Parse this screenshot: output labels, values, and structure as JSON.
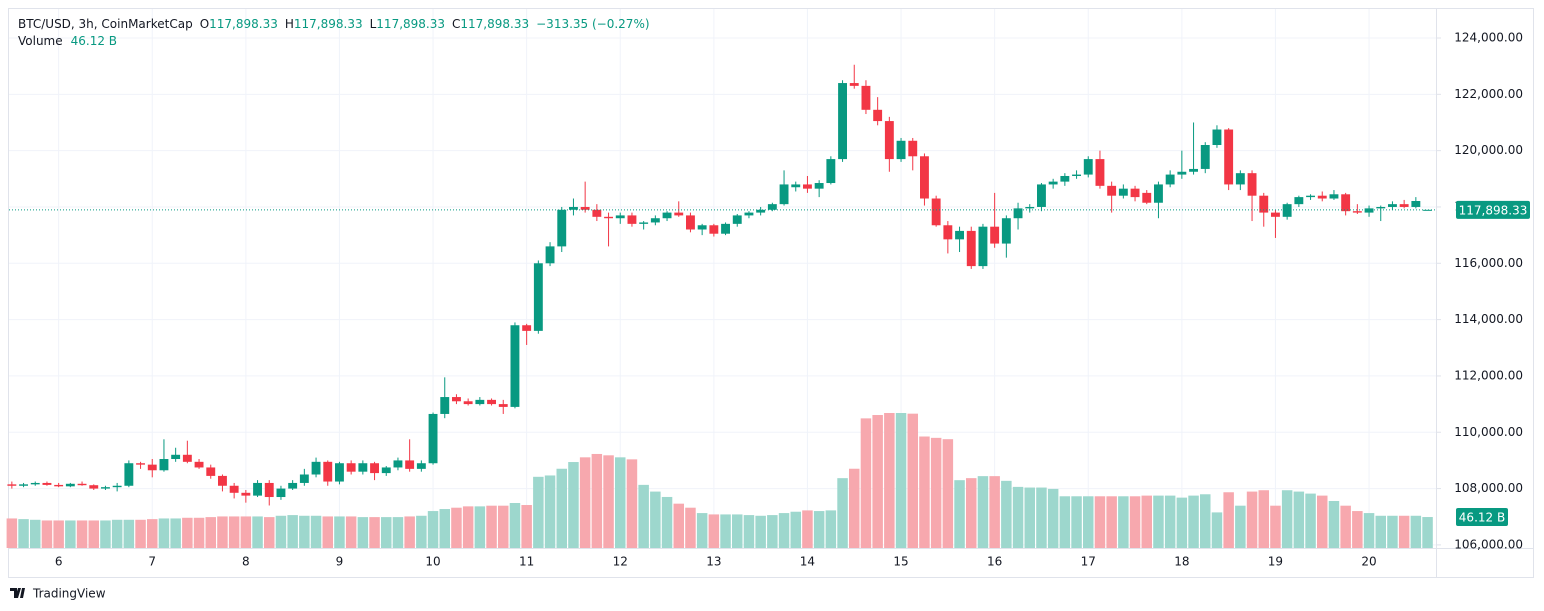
{
  "chart_data": {
    "type": "candlestick",
    "legend": {
      "symbol": "BTC/USD, 3h, CoinMarketCap",
      "items": [
        {
          "label": "O",
          "value": "117,898.33"
        },
        {
          "label": "H",
          "value": "117,898.33"
        },
        {
          "label": "L",
          "value": "117,898.33"
        },
        {
          "label": "C",
          "value": "117,898.33"
        }
      ],
      "change": "−313.35 (−0.27%)",
      "volume_name": "Volume",
      "volume_value": "46.12 B"
    },
    "brand": "TradingView",
    "up_color": "#089981",
    "down_color": "#f23645",
    "volume_up_color": "#9dd7cd",
    "volume_down_color": "#f7a8ae",
    "grid": true,
    "categories": [
      null,
      null,
      null,
      null,
      "6",
      null,
      null,
      null,
      null,
      null,
      null,
      null,
      "7",
      null,
      null,
      null,
      null,
      null,
      null,
      null,
      "8",
      null,
      null,
      null,
      null,
      null,
      null,
      null,
      "9",
      null,
      null,
      null,
      null,
      null,
      null,
      null,
      "10",
      null,
      null,
      null,
      null,
      null,
      null,
      null,
      "11",
      null,
      null,
      null,
      null,
      null,
      null,
      null,
      "12",
      null,
      null,
      null,
      null,
      null,
      null,
      null,
      "13",
      null,
      null,
      null,
      null,
      null,
      null,
      null,
      "14",
      null,
      null,
      null,
      null,
      null,
      null,
      null,
      "15",
      null,
      null,
      null,
      null,
      null,
      null,
      null,
      "16",
      null,
      null,
      null,
      null,
      null,
      null,
      null,
      "17",
      null,
      null,
      null,
      null,
      null,
      null,
      null,
      "18",
      null,
      null,
      null,
      null,
      null,
      null,
      null,
      "19",
      null,
      null,
      null,
      null,
      null,
      null,
      null,
      "20",
      null,
      null,
      null,
      null,
      null
    ],
    "open": [
      108150,
      108100,
      108150,
      108200,
      108130,
      108080,
      108170,
      108120,
      108000,
      108050,
      108100,
      108900,
      108850,
      108650,
      109050,
      109200,
      108950,
      108750,
      108450,
      108100,
      107850,
      107750,
      108200,
      107700,
      108000,
      108200,
      108500,
      108950,
      108250,
      108900,
      108600,
      108900,
      108550,
      108750,
      109000,
      108700,
      108900,
      110650,
      111250,
      111100,
      111000,
      111150,
      111000,
      110900,
      113800,
      113600,
      116000,
      116600,
      117900,
      118000,
      117900,
      117650,
      117600,
      117700,
      117400,
      117450,
      117600,
      117800,
      117700,
      117200,
      117350,
      117050,
      117400,
      117700,
      117800,
      117900,
      118100,
      118700,
      118800,
      118650,
      118850,
      119700,
      122400,
      122300,
      121450,
      121050,
      119700,
      120350,
      119800,
      118300,
      117350,
      116850,
      117150,
      115900,
      117300,
      116700,
      117600,
      117950,
      118000,
      118800,
      118900,
      119100,
      119150,
      119700,
      118750,
      118400,
      118650,
      118500,
      118150,
      118800,
      119150,
      119250,
      119350,
      120200,
      120750,
      118800,
      119200,
      118400,
      117800,
      117650,
      118100,
      118350,
      118400,
      118300,
      118450,
      117850,
      117800,
      117950,
      118000,
      118100,
      118000,
      117898.33
    ],
    "high": [
      108250,
      108200,
      108250,
      108250,
      108200,
      108200,
      108250,
      108150,
      108100,
      108200,
      109000,
      108950,
      109050,
      109750,
      109450,
      109700,
      109050,
      108850,
      108500,
      108200,
      107950,
      108300,
      108300,
      108100,
      108300,
      108700,
      109100,
      109000,
      108950,
      109000,
      109000,
      108950,
      108800,
      109100,
      109750,
      109000,
      110700,
      111950,
      111350,
      111200,
      111250,
      111200,
      111150,
      113900,
      113850,
      116100,
      116750,
      118000,
      118300,
      118900,
      118100,
      117800,
      117800,
      117800,
      117500,
      117700,
      117850,
      118200,
      117800,
      117400,
      117400,
      117450,
      117750,
      117850,
      118000,
      118150,
      119300,
      118900,
      119100,
      118950,
      119800,
      122500,
      123050,
      122500,
      121900,
      121200,
      120450,
      120450,
      119900,
      118400,
      117500,
      117300,
      117300,
      117400,
      118500,
      117700,
      118150,
      118100,
      118850,
      119000,
      119200,
      119300,
      119800,
      120000,
      118900,
      118800,
      118750,
      118600,
      118900,
      119300,
      120000,
      121000,
      120300,
      120900,
      120800,
      119300,
      119300,
      118500,
      117900,
      118150,
      118400,
      118450,
      118550,
      118600,
      118500,
      118100,
      118050,
      118050,
      118200,
      118250,
      118350,
      117898.33
    ],
    "low": [
      108000,
      108050,
      108100,
      108100,
      108050,
      108050,
      108100,
      107950,
      107950,
      107900,
      108050,
      108700,
      108400,
      108600,
      108950,
      108900,
      108700,
      108350,
      107900,
      107650,
      107500,
      107700,
      107400,
      107600,
      107950,
      108100,
      108400,
      108100,
      108150,
      108500,
      108500,
      108300,
      108450,
      108650,
      108600,
      108600,
      108850,
      110500,
      111000,
      110950,
      110950,
      110950,
      110650,
      110850,
      113100,
      113500,
      115900,
      116400,
      117700,
      117800,
      117500,
      116600,
      117400,
      117300,
      117200,
      117350,
      117500,
      117650,
      117100,
      117000,
      116950,
      117000,
      117300,
      117600,
      117700,
      117850,
      118050,
      118550,
      118500,
      118350,
      118800,
      119600,
      122200,
      121300,
      120900,
      119250,
      119600,
      119300,
      118050,
      117300,
      116350,
      116400,
      115800,
      115800,
      116550,
      116200,
      117200,
      117800,
      117850,
      118650,
      118750,
      119000,
      119050,
      118650,
      117800,
      118300,
      118200,
      118100,
      117600,
      118700,
      119000,
      119150,
      119200,
      120100,
      118600,
      118600,
      117500,
      117300,
      116900,
      117550,
      118000,
      118250,
      118200,
      118250,
      117700,
      117750,
      117650,
      117500,
      117900,
      117950,
      117950,
      117898.33
    ],
    "close": [
      108100,
      108150,
      108200,
      108130,
      108080,
      108170,
      108120,
      108000,
      108050,
      108100,
      108900,
      108850,
      108650,
      109050,
      109200,
      108950,
      108750,
      108450,
      108100,
      107850,
      107750,
      108200,
      107700,
      108000,
      108200,
      108500,
      108950,
      108250,
      108900,
      108600,
      108900,
      108550,
      108750,
      109000,
      108700,
      108900,
      110650,
      111250,
      111100,
      111000,
      111150,
      111000,
      110900,
      113800,
      113600,
      116000,
      116600,
      117900,
      118000,
      117900,
      117650,
      117600,
      117700,
      117400,
      117450,
      117600,
      117800,
      117700,
      117200,
      117350,
      117050,
      117400,
      117700,
      117800,
      117900,
      118100,
      118800,
      118800,
      118650,
      118850,
      119700,
      122400,
      122300,
      121450,
      121050,
      119700,
      120350,
      119800,
      118300,
      117350,
      116850,
      117150,
      115900,
      117300,
      116700,
      117600,
      117950,
      118000,
      118800,
      118900,
      119100,
      119150,
      119700,
      118750,
      118400,
      118650,
      118350,
      118150,
      118800,
      119150,
      119250,
      119350,
      120200,
      120750,
      118800,
      119200,
      118400,
      117800,
      117650,
      118100,
      118350,
      118400,
      118300,
      118450,
      117850,
      117800,
      117950,
      118000,
      118100,
      118000,
      118211.68,
      117898.33
    ],
    "volume": [
      44,
      43,
      42,
      41,
      41,
      41,
      41,
      41,
      41,
      42,
      42,
      42,
      43,
      44,
      44,
      45,
      45,
      46,
      47,
      47,
      47,
      47,
      46,
      48,
      49,
      48,
      48,
      47,
      47,
      47,
      46,
      46,
      46,
      46,
      47,
      48,
      55,
      58,
      60,
      62,
      62,
      63,
      63,
      67,
      64,
      106,
      108,
      118,
      128,
      135,
      140,
      138,
      135,
      132,
      94,
      84,
      76,
      66,
      60,
      52,
      50,
      50,
      50,
      49,
      48,
      49,
      52,
      54,
      56,
      55,
      56,
      104,
      118,
      193,
      198,
      201,
      201,
      200,
      166,
      164,
      162,
      101,
      104,
      107,
      107,
      100,
      91,
      90,
      90,
      88,
      77,
      77,
      77,
      77,
      77,
      77,
      77,
      78,
      78,
      78,
      75,
      78,
      80,
      53,
      83,
      63,
      84,
      86,
      63,
      86,
      84,
      81,
      78,
      70,
      63,
      55,
      52,
      48,
      48,
      48,
      48,
      46.12
    ],
    "ylim": [
      105890,
      125065
    ],
    "yticks": [
      {
        "value": 106000,
        "label": "106,000.00"
      },
      {
        "value": 108000,
        "label": "108,000.00"
      },
      {
        "value": 110000,
        "label": "110,000.00"
      },
      {
        "value": 112000,
        "label": "112,000.00"
      },
      {
        "value": 114000,
        "label": "114,000.00"
      },
      {
        "value": 116000,
        "label": "116,000.00"
      },
      {
        "value": 118000,
        "label": "118,000.00"
      },
      {
        "value": 120000,
        "label": "120,000.00"
      },
      {
        "value": 122000,
        "label": "122,000.00"
      },
      {
        "value": 124000,
        "label": "124,000.00"
      }
    ],
    "last_price": {
      "value": 117898.33,
      "label": "117,898.33"
    }
  }
}
